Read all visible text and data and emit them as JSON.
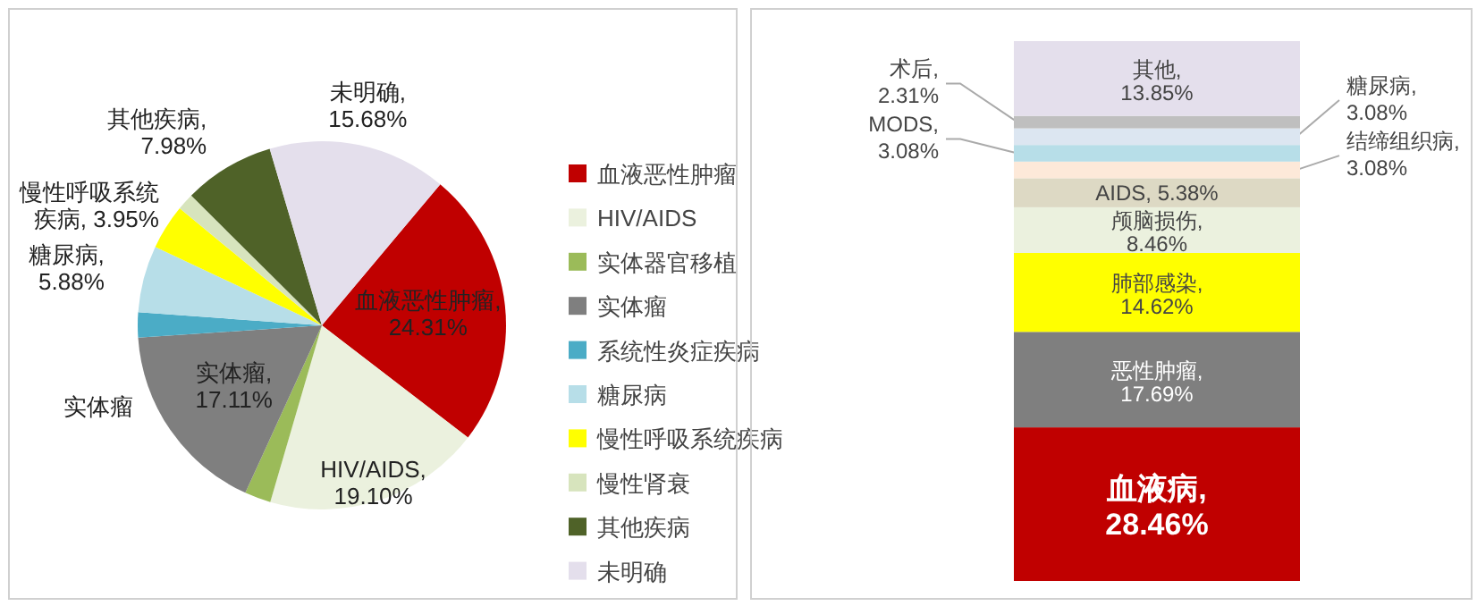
{
  "chart_data": [
    {
      "type": "pie",
      "categories": [
        "血液恶性肿瘤",
        "HIV/AIDS",
        "实体器官移植",
        "实体瘤",
        "系统性炎症疾病",
        "糖尿病",
        "慢性呼吸系统疾病",
        "慢性肾衰",
        "其他疾病",
        "未明确"
      ],
      "values": [
        24.31,
        19.1,
        2.3,
        17.11,
        2.2,
        5.88,
        3.95,
        1.49,
        7.98,
        15.68
      ],
      "colors": [
        "#c00000",
        "#ebf1de",
        "#9bbb59",
        "#7f7f7f",
        "#4bacc6",
        "#b7dee8",
        "#ffff00",
        "#d7e4bd",
        "#4f6228",
        "#e4dfec"
      ],
      "value_labels": [
        "血液恶性肿瘤, 24.31%",
        "HIV/AIDS, 19.10%",
        null,
        "实体瘤, 17.11%",
        null,
        "糖尿病, 5.88%",
        "慢性呼吸系统疾病, 3.95%",
        null,
        "其他疾病, 7.98%",
        "未明确, 15.68%"
      ],
      "legend": "right",
      "annotations": [
        "实体瘤"
      ]
    },
    {
      "type": "bar",
      "stacked": true,
      "categories": [
        null
      ],
      "series": [
        {
          "color": "#c00000",
          "values": [
            28.46
          ],
          "value_labels": [
            "血液病, 28.46%"
          ]
        },
        {
          "color": "#7f7f7f",
          "values": [
            17.69
          ],
          "value_labels": [
            "恶性肿瘤, 17.69%"
          ]
        },
        {
          "color": "#ffff00",
          "values": [
            14.62
          ],
          "value_labels": [
            "肺部感染, 14.62%"
          ]
        },
        {
          "color": "#ebf1de",
          "values": [
            8.46
          ],
          "value_labels": [
            "颅脑损伤, 8.46%"
          ]
        },
        {
          "color": "#ddd9c4",
          "values": [
            5.38
          ],
          "value_labels": [
            "AIDS, 5.38%"
          ]
        },
        {
          "color": "#fde9d9",
          "values": [
            3.08
          ],
          "value_labels": [
            "结缔组织病, 3.08%"
          ]
        },
        {
          "color": "#b7dee8",
          "values": [
            3.08
          ],
          "value_labels": [
            "MODS, 3.08%"
          ]
        },
        {
          "color": "#dce6f1",
          "values": [
            3.08
          ],
          "value_labels": [
            "糖尿病, 3.08%"
          ]
        },
        {
          "color": "#bfbfbf",
          "values": [
            2.31
          ],
          "value_labels": [
            "术后, 2.31%"
          ]
        },
        {
          "color": "#e4dfec",
          "values": [
            13.85
          ],
          "value_labels": [
            "其他, 13.85%"
          ]
        }
      ]
    }
  ]
}
